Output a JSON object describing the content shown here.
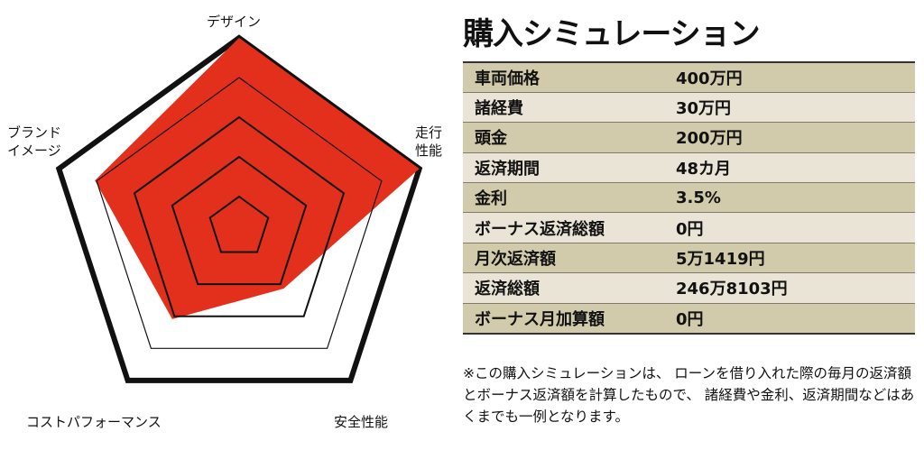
{
  "chart_data": {
    "type": "radar",
    "categories": [
      "デザイン",
      "走行性能",
      "安全性能",
      "コストパフォーマンス",
      "ブランドイメージ"
    ],
    "label_lines": [
      [
        "デザイン"
      ],
      [
        "走行",
        "性能"
      ],
      [
        "安全性能"
      ],
      [
        "コストパフォーマンス"
      ],
      [
        "ブランド",
        "イメージ"
      ]
    ],
    "values": [
      5,
      5,
      2,
      3,
      4
    ],
    "rlim": [
      0,
      5
    ],
    "rings": 5,
    "colors": {
      "fill": "#e2301c",
      "outline": "#111111"
    }
  },
  "simulation": {
    "title": "購入シミュレーション",
    "rows": [
      {
        "label": "車両価格",
        "value": "400万円"
      },
      {
        "label": "諸経費",
        "value": "30万円"
      },
      {
        "label": "頭金",
        "value": "200万円"
      },
      {
        "label": "返済期間",
        "value": "48カ月"
      },
      {
        "label": "金利",
        "value": "3.5%"
      },
      {
        "label": "ボーナス返済総額",
        "value": "0円"
      },
      {
        "label": "月次返済額",
        "value": "5万1419円"
      },
      {
        "label": "返済総額",
        "value": "246万8103円"
      },
      {
        "label": "ボーナス月加算額",
        "value": "0円"
      }
    ],
    "note": "※この購入シミュレーションは、 ローンを借り入れた際の毎月の返済額とボーナス返済額を計算したもので、 諸経費や金利、返済期間などはあくまでも一例となります。",
    "colors": {
      "row_dark": "#d2cbab",
      "row_light": "#e9e4d6"
    }
  }
}
